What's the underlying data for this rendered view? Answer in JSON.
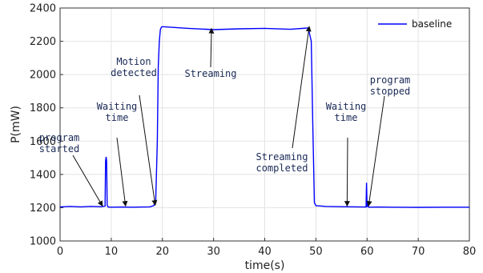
{
  "chart_data": {
    "type": "line",
    "xlabel": "time(s)",
    "ylabel": "P(mW)",
    "xlim": [
      0,
      80
    ],
    "ylim": [
      1000,
      2400
    ],
    "xticks": [
      0,
      10,
      20,
      30,
      40,
      50,
      60,
      70,
      80
    ],
    "yticks": [
      1000,
      1200,
      1400,
      1600,
      1800,
      2000,
      2200,
      2400
    ],
    "grid": true,
    "legend_position": "top-right",
    "line_color": "#0000ff",
    "series": [
      {
        "name": "baseline",
        "x": [
          0,
          2,
          4,
          6,
          8,
          8.8,
          8.9,
          9.0,
          9.1,
          9.2,
          9.4,
          10,
          12,
          14,
          16,
          17.5,
          18.3,
          18.7,
          19.0,
          19.2,
          19.4,
          19.6,
          19.8,
          20,
          25,
          30,
          35,
          40,
          45,
          48.5,
          49.1,
          49.4,
          49.7,
          50,
          52,
          55,
          58,
          59.8,
          59.9,
          60.0,
          60.1,
          60.3,
          62,
          65,
          70,
          75,
          80
        ],
        "y": [
          1205,
          1208,
          1205,
          1208,
          1206,
          1210,
          1480,
          1505,
          1480,
          1215,
          1204,
          1203,
          1204,
          1203,
          1204,
          1205,
          1212,
          1240,
          1600,
          2050,
          2200,
          2270,
          2285,
          2288,
          2278,
          2270,
          2275,
          2278,
          2272,
          2280,
          2200,
          1700,
          1230,
          1212,
          1208,
          1206,
          1205,
          1204,
          1350,
          1205,
          1220,
          1203,
          1204,
          1203,
          1202,
          1203,
          1203
        ]
      }
    ],
    "annotations": [
      {
        "lines": [
          "program",
          "started"
        ],
        "x": 8.3,
        "y": 1200
      },
      {
        "lines": [
          "Waiting",
          "time"
        ],
        "x": 12.8,
        "y": 1200
      },
      {
        "lines": [
          "Motion",
          "detected"
        ],
        "x": 18.6,
        "y": 1205
      },
      {
        "lines": [
          "Streaming"
        ],
        "x": 29.6,
        "y": 2268
      },
      {
        "lines": [
          "Streaming",
          "completed"
        ],
        "x": 48.7,
        "y": 2280
      },
      {
        "lines": [
          "Waiting",
          "time"
        ],
        "x": 56.1,
        "y": 1200
      },
      {
        "lines": [
          "program",
          "stopped"
        ],
        "x": 60.3,
        "y": 1200
      }
    ]
  }
}
